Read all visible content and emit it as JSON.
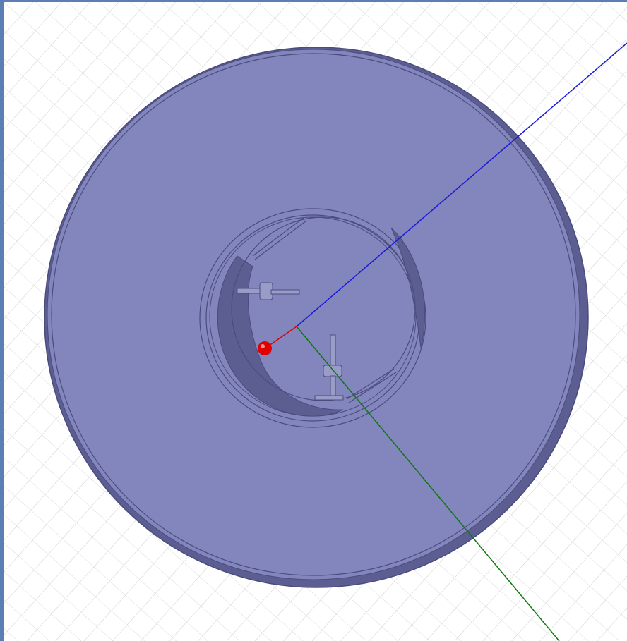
{
  "window": {
    "title": ""
  },
  "viewport": {
    "view": "3d-model-viewport",
    "background_color": "#ffffff",
    "grid_color": "#d9d9d9",
    "frame_color": "#5b7fb4"
  },
  "model": {
    "shape": "flanged cylindrical housing",
    "body_color": "#8385bd",
    "edge_color": "#4a4c7e",
    "inner_shade_color": "#5c5e92",
    "opacity": 1
  },
  "axes": {
    "x_color": "#e00000",
    "y_color": "#0a7a0a",
    "z_color": "#1a1ad6"
  },
  "origin_marker": {
    "color": "#e00000"
  }
}
